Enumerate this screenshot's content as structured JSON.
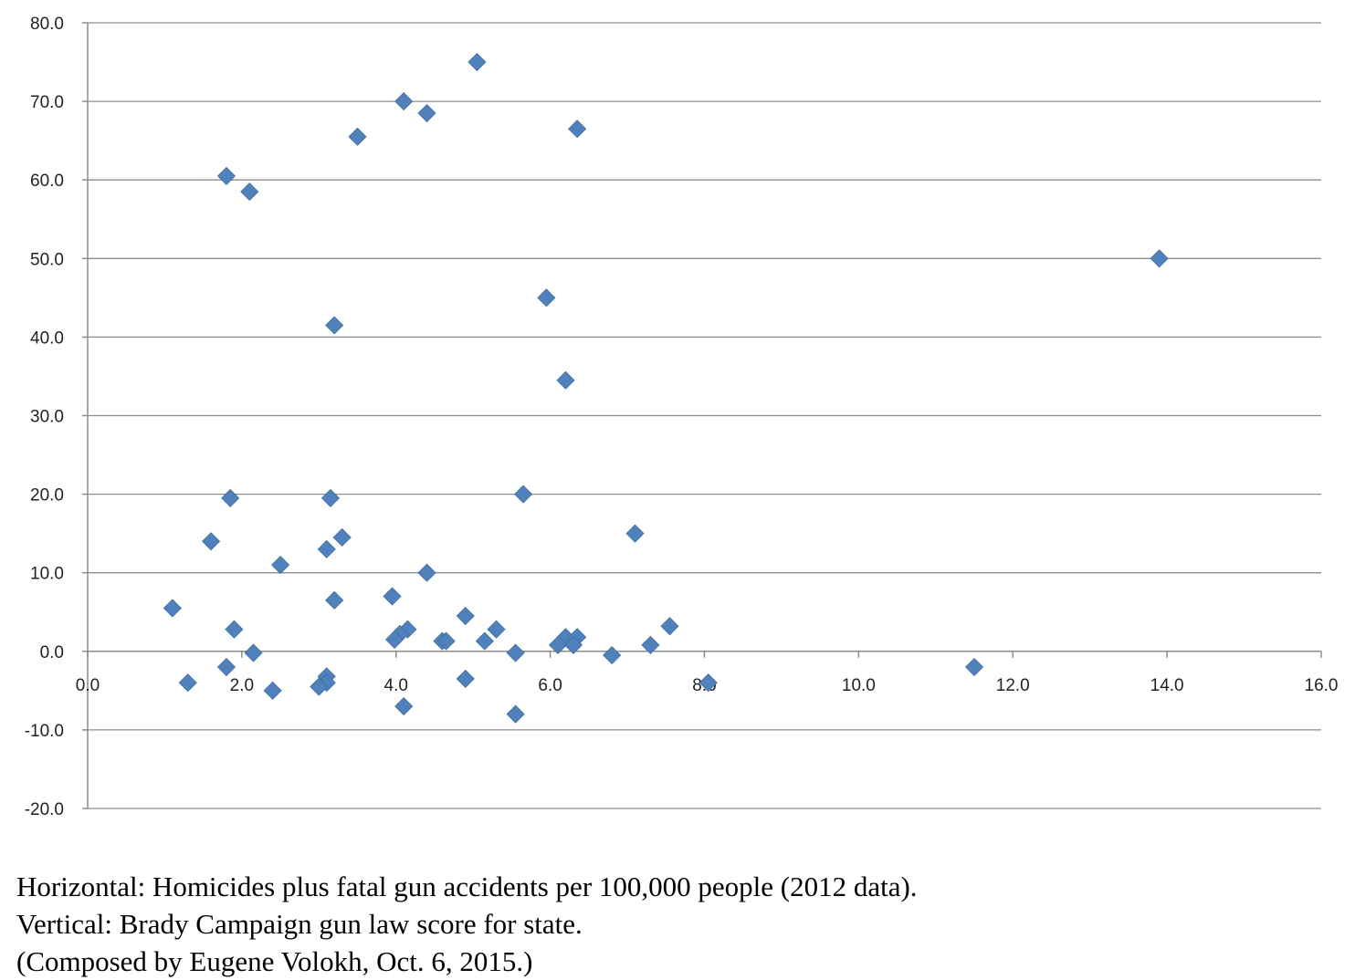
{
  "chart_data": {
    "type": "scatter",
    "title": "",
    "xlabel": "",
    "ylabel": "",
    "xlim": [
      0,
      16
    ],
    "ylim": [
      -20,
      80
    ],
    "x_ticks": [
      "0.0",
      "2.0",
      "4.0",
      "6.0",
      "8.0",
      "10.0",
      "12.0",
      "14.0",
      "16.0"
    ],
    "y_ticks": [
      "80.0",
      "70.0",
      "60.0",
      "50.0",
      "40.0",
      "30.0",
      "20.0",
      "10.0",
      "0.0",
      "-10.0",
      "-20.0"
    ],
    "grid": "horizontal",
    "marker": "diamond",
    "marker_color": "#4f81bd",
    "series": [
      {
        "points": [
          [
            5.05,
            75
          ],
          [
            4.1,
            70
          ],
          [
            4.4,
            68.5
          ],
          [
            6.35,
            66.5
          ],
          [
            3.5,
            65.5
          ],
          [
            1.8,
            60.5
          ],
          [
            2.1,
            58.5
          ],
          [
            13.9,
            50
          ],
          [
            5.95,
            45
          ],
          [
            3.2,
            41.5
          ],
          [
            6.2,
            34.5
          ],
          [
            5.65,
            20
          ],
          [
            1.85,
            19.5
          ],
          [
            3.15,
            19.5
          ],
          [
            1.6,
            14
          ],
          [
            3.3,
            14.5
          ],
          [
            3.1,
            13
          ],
          [
            7.1,
            15
          ],
          [
            2.5,
            11
          ],
          [
            4.4,
            10
          ],
          [
            3.95,
            7
          ],
          [
            3.2,
            6.5
          ],
          [
            1.1,
            5.5
          ],
          [
            4.9,
            4.5
          ],
          [
            7.55,
            3.2
          ],
          [
            1.9,
            2.8
          ],
          [
            4.15,
            2.8
          ],
          [
            5.3,
            2.8
          ],
          [
            4.05,
            2.2
          ],
          [
            3.98,
            1.5
          ],
          [
            6.2,
            1.8
          ],
          [
            6.35,
            1.8
          ],
          [
            4.6,
            1.3
          ],
          [
            4.65,
            1.3
          ],
          [
            5.15,
            1.3
          ],
          [
            6.1,
            0.8
          ],
          [
            6.3,
            0.8
          ],
          [
            7.3,
            0.8
          ],
          [
            2.15,
            -0.2
          ],
          [
            5.55,
            -0.2
          ],
          [
            6.8,
            -0.5
          ],
          [
            1.8,
            -2
          ],
          [
            11.5,
            -2
          ],
          [
            1.3,
            -4
          ],
          [
            3.1,
            -3.2
          ],
          [
            4.9,
            -3.5
          ],
          [
            3.1,
            -4
          ],
          [
            3.0,
            -4.5
          ],
          [
            8.05,
            -4
          ],
          [
            2.4,
            -5
          ],
          [
            4.1,
            -7
          ],
          [
            5.55,
            -8
          ]
        ]
      }
    ]
  },
  "caption": {
    "line1": "Horizontal: Homicides plus fatal gun accidents per 100,000 people (2012 data).",
    "line2": "Vertical: Brady Campaign gun law score for state.",
    "line3": "(Composed by Eugene Volokh, Oct. 6, 2015.)"
  }
}
